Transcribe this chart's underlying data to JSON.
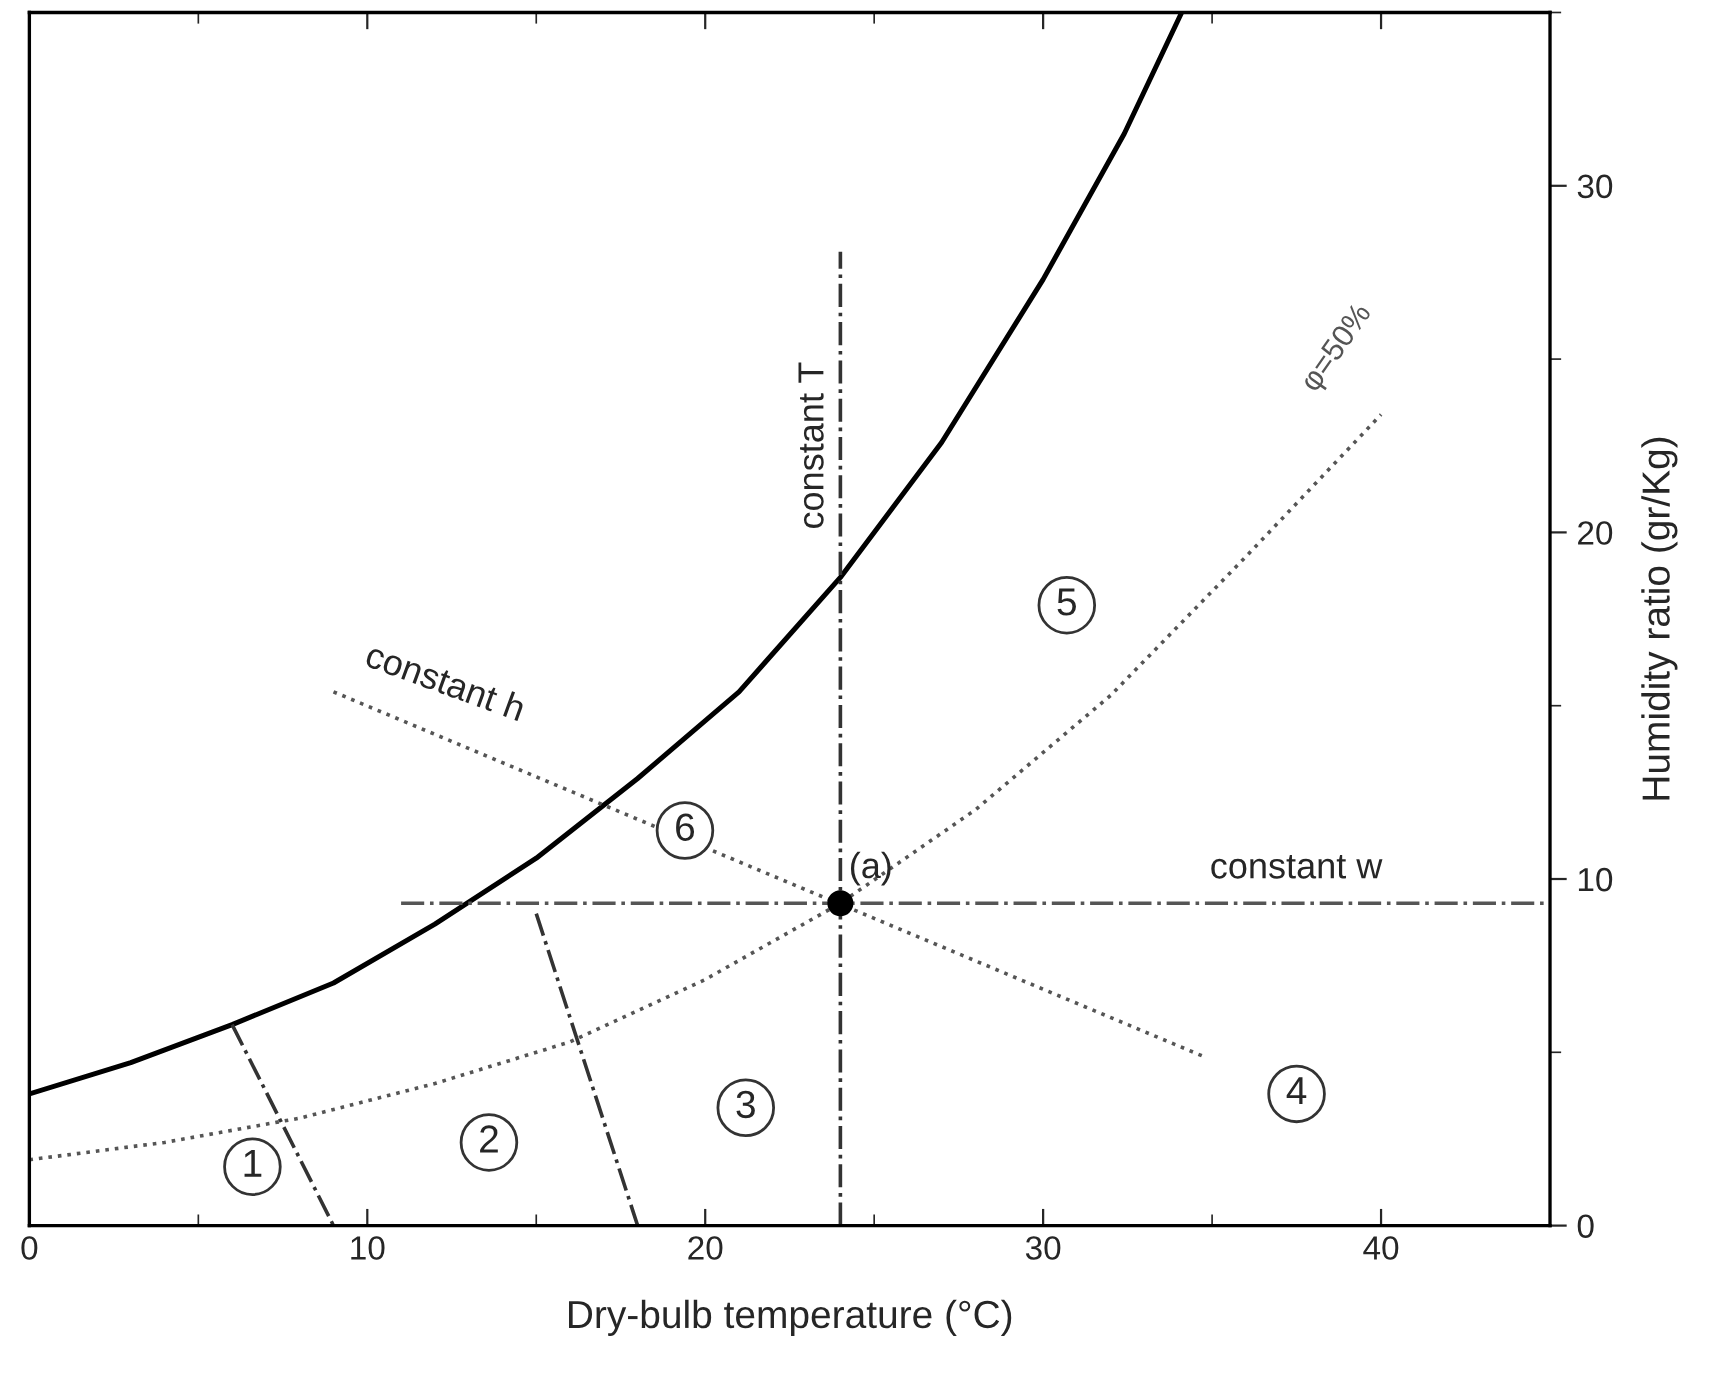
{
  "chart_data": {
    "type": "line",
    "xlabel": "Dry-bulb temperature (°C)",
    "ylabel": "Humidity ratio (gr/Kg)",
    "xlim": [
      0,
      45
    ],
    "ylim": [
      0,
      35
    ],
    "xticks": [
      0,
      10,
      20,
      30,
      40
    ],
    "yticks": [
      0,
      10,
      20,
      30
    ],
    "grid": false,
    "legend": false,
    "series": [
      {
        "color": "#000000",
        "line_style": "solid",
        "x": [
          0,
          3,
          6,
          9,
          12,
          15,
          18,
          21,
          24,
          27,
          30,
          32.4,
          34.1
        ],
        "values": [
          3.8,
          4.7,
          5.8,
          7.0,
          8.7,
          10.6,
          12.9,
          15.4,
          18.7,
          22.6,
          27.3,
          31.5,
          35
        ]
      },
      {
        "color": "#555555",
        "line_style": "dotted",
        "x": [
          0,
          4,
          8,
          12,
          16,
          20,
          24,
          28,
          32,
          36,
          40
        ],
        "values": [
          1.9,
          2.4,
          3.1,
          4.1,
          5.3,
          7.1,
          9.3,
          12.0,
          15.3,
          19.3,
          23.4
        ]
      },
      {
        "color": "#555555",
        "line_style": "dotted",
        "x": [
          9,
          34.7
        ],
        "values": [
          15.4,
          4.9
        ]
      },
      {
        "color": "#555555",
        "line_style": "dashed",
        "x": [
          11,
          45
        ],
        "values": [
          9.3,
          9.3
        ]
      },
      {
        "color": "#333333",
        "line_style": "dashed",
        "x": [
          24,
          24
        ],
        "values": [
          0,
          28.1
        ]
      },
      {
        "color": "#333333",
        "line_style": "dashed",
        "x": [
          6,
          9
        ],
        "values": [
          5.8,
          0
        ]
      },
      {
        "color": "#333333",
        "line_style": "dashed",
        "x": [
          15,
          18
        ],
        "values": [
          9.0,
          0
        ]
      },
      {
        "type": "scatter",
        "color": "#000000",
        "marker": "circle",
        "x": [
          24
        ],
        "values": [
          9.3
        ]
      }
    ],
    "annotations": [
      {
        "text": "(a)",
        "x": 24.9,
        "y": 10.3
      },
      "constant T",
      "constant h",
      "constant w",
      "φ=50%",
      {
        "text": "1",
        "x": 6.6,
        "y": 1.7
      },
      {
        "text": "2",
        "x": 13.6,
        "y": 2.4
      },
      {
        "text": "3",
        "x": 21.2,
        "y": 3.4
      },
      {
        "text": "4",
        "x": 37.5,
        "y": 3.8
      },
      {
        "text": "5",
        "x": 30.7,
        "y": 17.9
      },
      {
        "text": "6",
        "x": 19.4,
        "y": 11.4
      }
    ]
  }
}
